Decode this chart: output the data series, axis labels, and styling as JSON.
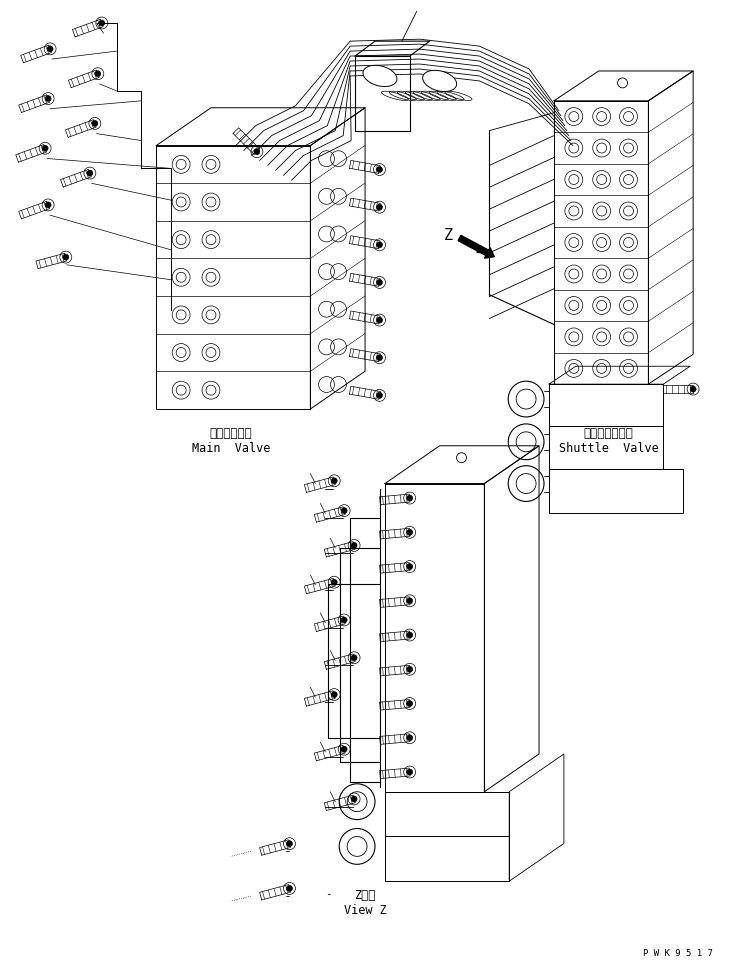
{
  "bg_color": "#ffffff",
  "lc": "#000000",
  "lw": 0.7,
  "fig_w": 7.51,
  "fig_h": 9.61,
  "dpi": 100,
  "main_valve_jp": "メインバルブ",
  "main_valve_en": "Main  Valve",
  "shuttle_valve_jp": "シャトルバルブ",
  "shuttle_valve_en": "Shuttle  Valve",
  "view_z_jp": "Z　視",
  "view_z_en": "View Z",
  "watermark": "P W K 9 5 1 7",
  "z_label": "Z"
}
